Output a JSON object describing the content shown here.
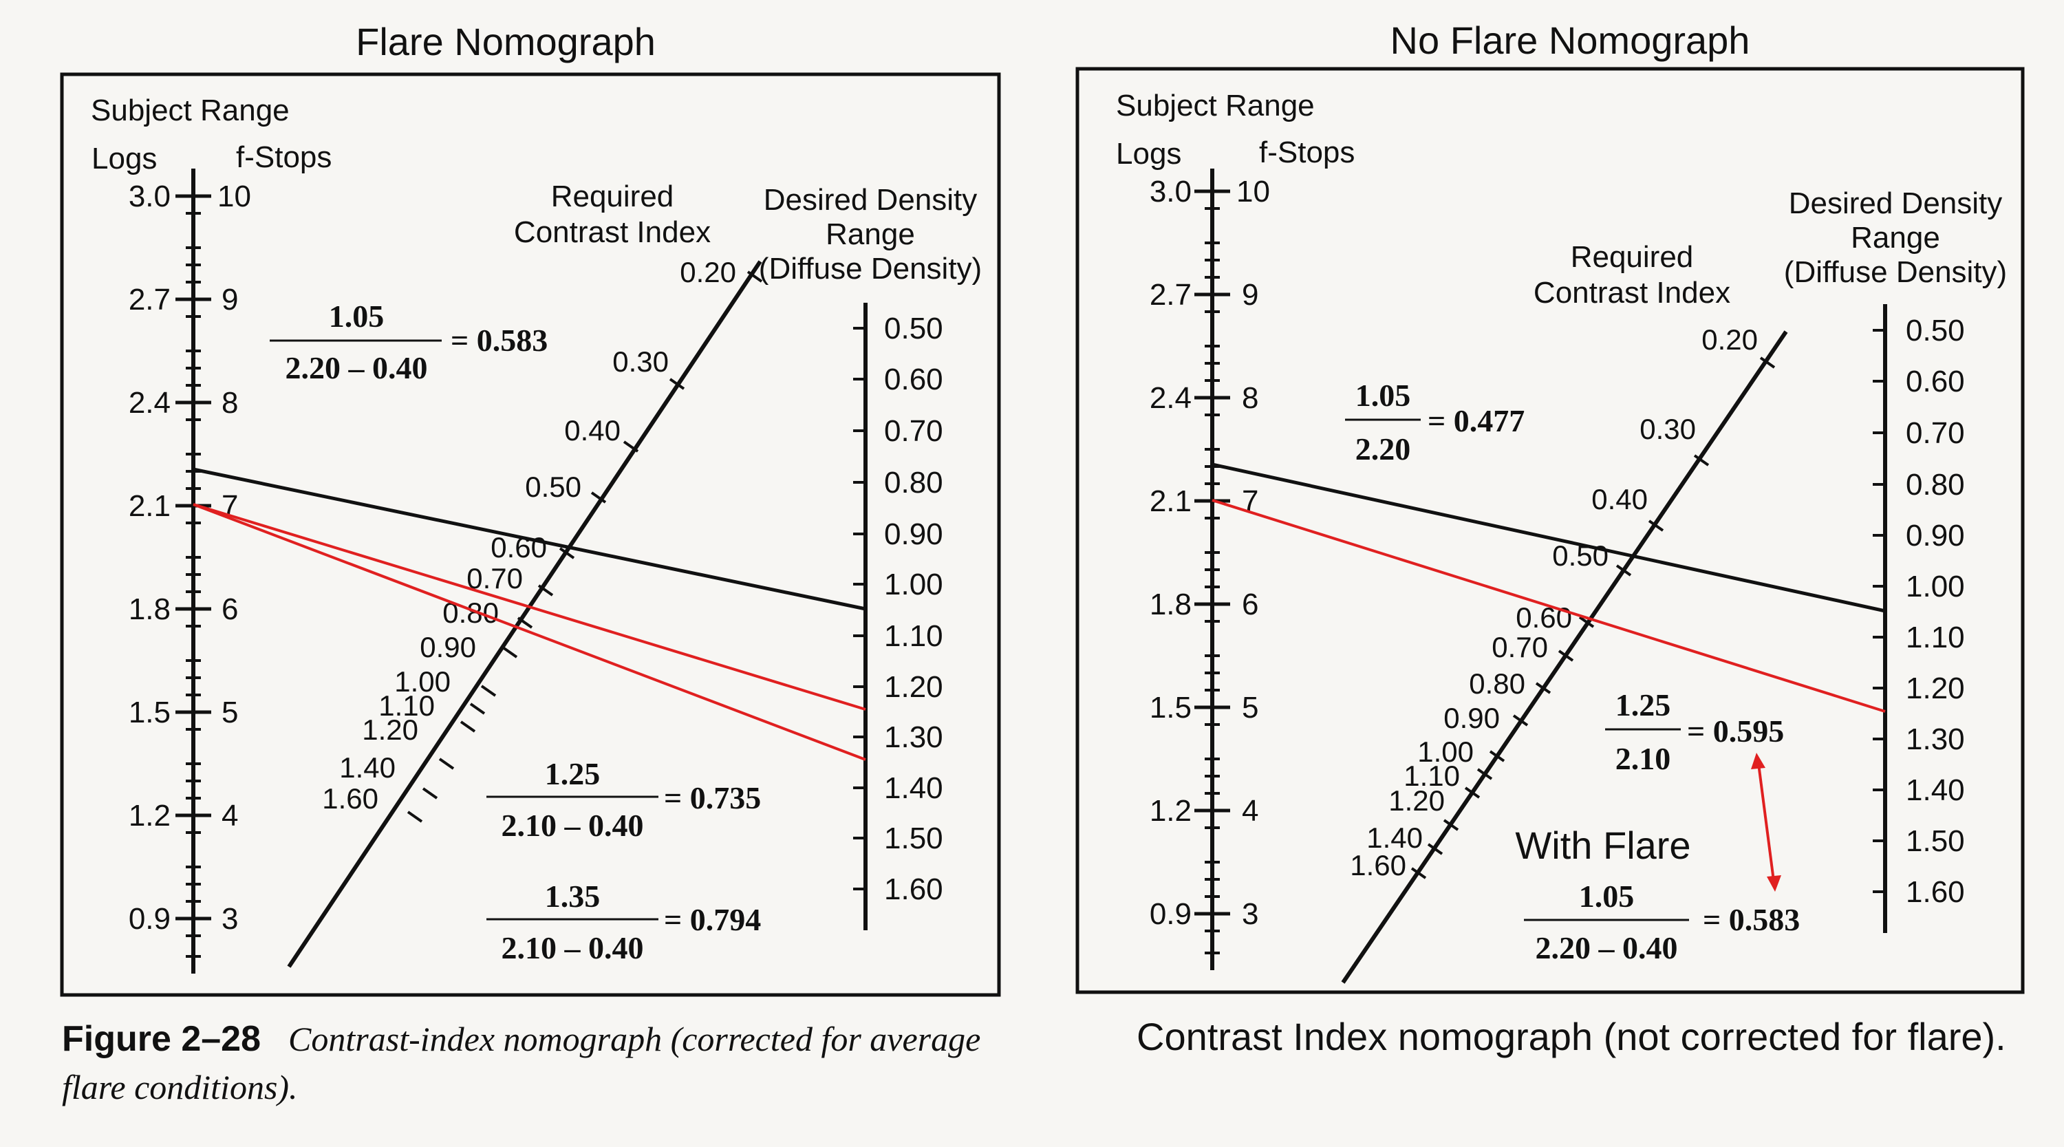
{
  "left": {
    "title": "Flare Nomograph",
    "subject_range_label": "Subject Range",
    "logs_label": "Logs",
    "fstops_label": "f-Stops",
    "log_ticks": [
      "3.0",
      "2.7",
      "2.4",
      "2.1",
      "1.8",
      "1.5",
      "1.2",
      "0.9"
    ],
    "fstop_ticks": [
      "10",
      "9",
      "8",
      "7",
      "6",
      "5",
      "4",
      "3"
    ],
    "ci_header": [
      "Required",
      "Contrast Index"
    ],
    "ci_ticks": [
      "0.20",
      "0.30",
      "0.40",
      "0.50",
      "0.60",
      "0.70",
      "0.80",
      "0.90",
      "1.00",
      "1.10",
      "1.20",
      "1.40",
      "1.60"
    ],
    "density_header": [
      "Desired Density",
      "Range",
      "(Diffuse Density)"
    ],
    "density_ticks": [
      "0.50",
      "0.60",
      "0.70",
      "0.80",
      "0.90",
      "1.00",
      "1.10",
      "1.20",
      "1.30",
      "1.40",
      "1.50",
      "1.60"
    ],
    "formulas": [
      {
        "num": "1.05",
        "den": "2.20  –  0.40",
        "result": "= 0.583"
      },
      {
        "num": "1.25",
        "den": "2.10  –  0.40",
        "result": "= 0.735"
      },
      {
        "num": "1.35",
        "den": "2.10  –  0.40",
        "result": "= 0.794"
      }
    ]
  },
  "right": {
    "title": "No Flare Nomograph",
    "subject_range_label": "Subject Range",
    "logs_label": "Logs",
    "fstops_label": "f-Stops",
    "log_ticks": [
      "3.0",
      "2.7",
      "2.4",
      "2.1",
      "1.8",
      "1.5",
      "1.2",
      "0.9"
    ],
    "fstop_ticks": [
      "10",
      "9",
      "8",
      "7",
      "6",
      "5",
      "4",
      "3"
    ],
    "ci_header": [
      "Required",
      "Contrast Index"
    ],
    "ci_ticks": [
      "0.20",
      "0.30",
      "0.40",
      "0.50",
      "0.60",
      "0.70",
      "0.80",
      "0.90",
      "1.00",
      "1.10",
      "1.20",
      "1.40",
      "1.60"
    ],
    "density_header": [
      "Desired Density",
      "Range",
      "(Diffuse Density)"
    ],
    "density_ticks": [
      "0.50",
      "0.60",
      "0.70",
      "0.80",
      "0.90",
      "1.00",
      "1.10",
      "1.20",
      "1.30",
      "1.40",
      "1.50",
      "1.60"
    ],
    "formulas": [
      {
        "num": "1.05",
        "den": "2.20",
        "result": "= 0.477"
      },
      {
        "num": "1.25",
        "den": "2.10",
        "result": "= 0.595"
      },
      {
        "num": "1.05",
        "den": "2.20  –  0.40",
        "result": "= 0.583"
      }
    ],
    "with_flare_label": "With Flare"
  },
  "caption_left": {
    "figure": "Figure 2–28",
    "text": "Contrast-index nomograph (corrected for average flare conditions)."
  },
  "caption_right": "Contrast Index nomograph (not corrected for flare).",
  "colors": {
    "line": "#111111",
    "red": "#e02020",
    "paper": "#f7f6f3"
  }
}
